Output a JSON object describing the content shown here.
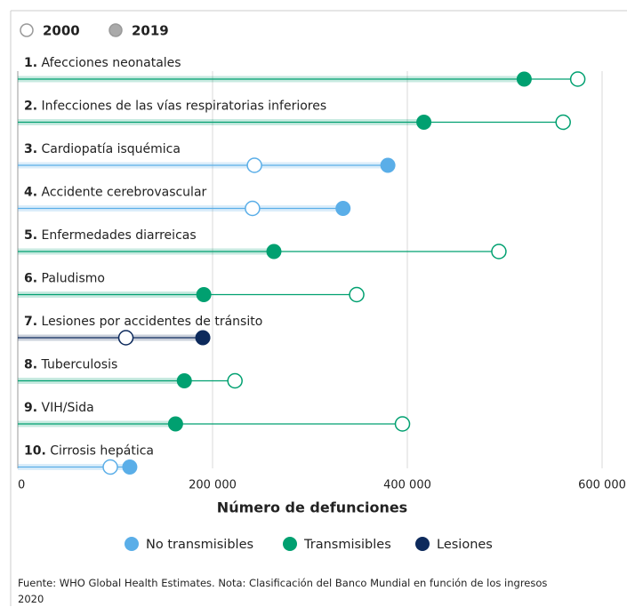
{
  "chart_data": {
    "type": "dumbbell",
    "ranks": [
      "1.",
      "2.",
      "3.",
      "4.",
      "5.",
      "6.",
      "7.",
      "8.",
      "9.",
      "10."
    ],
    "categories": [
      "Afecciones neonatales",
      "Infecciones de las vías respiratorias inferiores",
      "Cardiopatía isquémica",
      "Accidente cerebrovascular",
      "Enfermedades diarreicas",
      "Paludismo",
      "Lesiones por accidentes de tránsito",
      "Tuberculosis",
      "VIH/Sida",
      "Cirrosis hepática"
    ],
    "category_groups": [
      "Transmisibles",
      "Transmisibles",
      "No transmisibles",
      "No transmisibles",
      "Transmisibles",
      "Transmisibles",
      "Lesiones",
      "Transmisibles",
      "Transmisibles",
      "No transmisibles"
    ],
    "series": [
      {
        "name": "2000",
        "color": "#ffffff",
        "values": [
          575000,
          560000,
          243000,
          241000,
          494000,
          348000,
          111000,
          223000,
          395000,
          95000
        ]
      },
      {
        "name": "2019",
        "color": "#aaaaaa",
        "values": [
          520000,
          417000,
          380000,
          334000,
          263000,
          191000,
          190000,
          171000,
          162000,
          115000
        ]
      }
    ],
    "groups": [
      {
        "name": "No transmisibles",
        "color": "#5aaee8"
      },
      {
        "name": "Transmisibles",
        "color": "#00a070"
      },
      {
        "name": "Lesiones",
        "color": "#0d2a5c"
      }
    ],
    "xlim": [
      0,
      600000
    ],
    "xticks": [
      0,
      {
        "value": 200000,
        "label": "200 000"
      },
      {
        "value": 400000,
        "label": "400 000"
      },
      {
        "value": 600000,
        "label": "600 000"
      }
    ],
    "xlabel": "Número de defunciones",
    "grid": true,
    "source": "Fuente: WHO Global Health Estimates. Nota: Clasificación del Banco Mundial en función de los ingresos 2020"
  }
}
